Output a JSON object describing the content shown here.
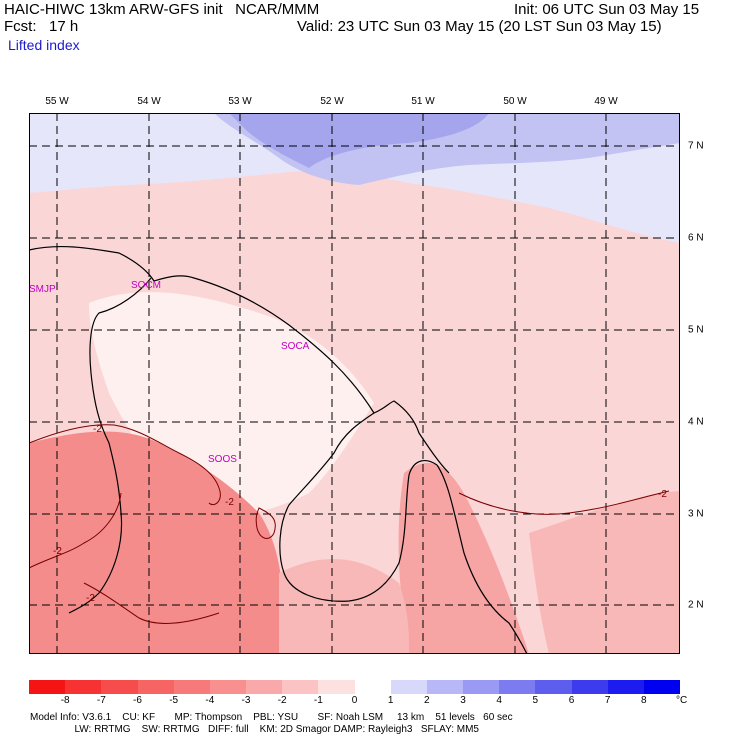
{
  "header": {
    "line1_left": "HAIC-HIWC 13km ARW-GFS init   NCAR/MMM",
    "line2_left": "Fcst:   17 h",
    "field_name": "Lifted index",
    "init": "Init: 06 UTC Sun 03 May 15",
    "valid": "Valid: 23 UTC Sun 03 May 15 (20 LST Sun 03 May 15)"
  },
  "map": {
    "lon_labels": [
      "55 W",
      "54 W",
      "53 W",
      "52 W",
      "51 W",
      "50 W",
      "49 W"
    ],
    "lat_labels": [
      "7 N",
      "6 N",
      "5 N",
      "4 N",
      "3 N",
      "2 N"
    ],
    "stations": [
      "SMJP",
      "SOCM",
      "SOCA",
      "SOOS"
    ],
    "contour_labels": [
      "-2",
      "-2",
      "-2",
      "-2",
      "-2"
    ]
  },
  "colorbar": {
    "ticks": [
      "-8",
      "-7",
      "-6",
      "-5",
      "-4",
      "-3",
      "-2",
      "-1",
      "0",
      "1",
      "2",
      "3",
      "4",
      "5",
      "6",
      "7",
      "8"
    ],
    "unit": "°C",
    "colors": [
      "#f51414",
      "#f73232",
      "#f74c4c",
      "#f76464",
      "#f77a7a",
      "#f89090",
      "#f9a9a9",
      "#fbc3c3",
      "#fde0e0",
      "#ffffff",
      "#d8d8fb",
      "#b8b8f8",
      "#9a9af4",
      "#7c7cf0",
      "#5e5eee",
      "#3c3cee",
      "#1c1cf0",
      "#0000f0"
    ]
  },
  "footer": {
    "line1": "Model Info: V3.6.1    CU: KF       MP: Thompson    PBL: YSU       SF: Noah LSM     13 km    51 levels   60 sec",
    "line2": "                LW: RRTMG    SW: RRTMG   DIFF: full    KM: 2D Smagor DAMP: Rayleigh3   SFLAY: MM5"
  }
}
